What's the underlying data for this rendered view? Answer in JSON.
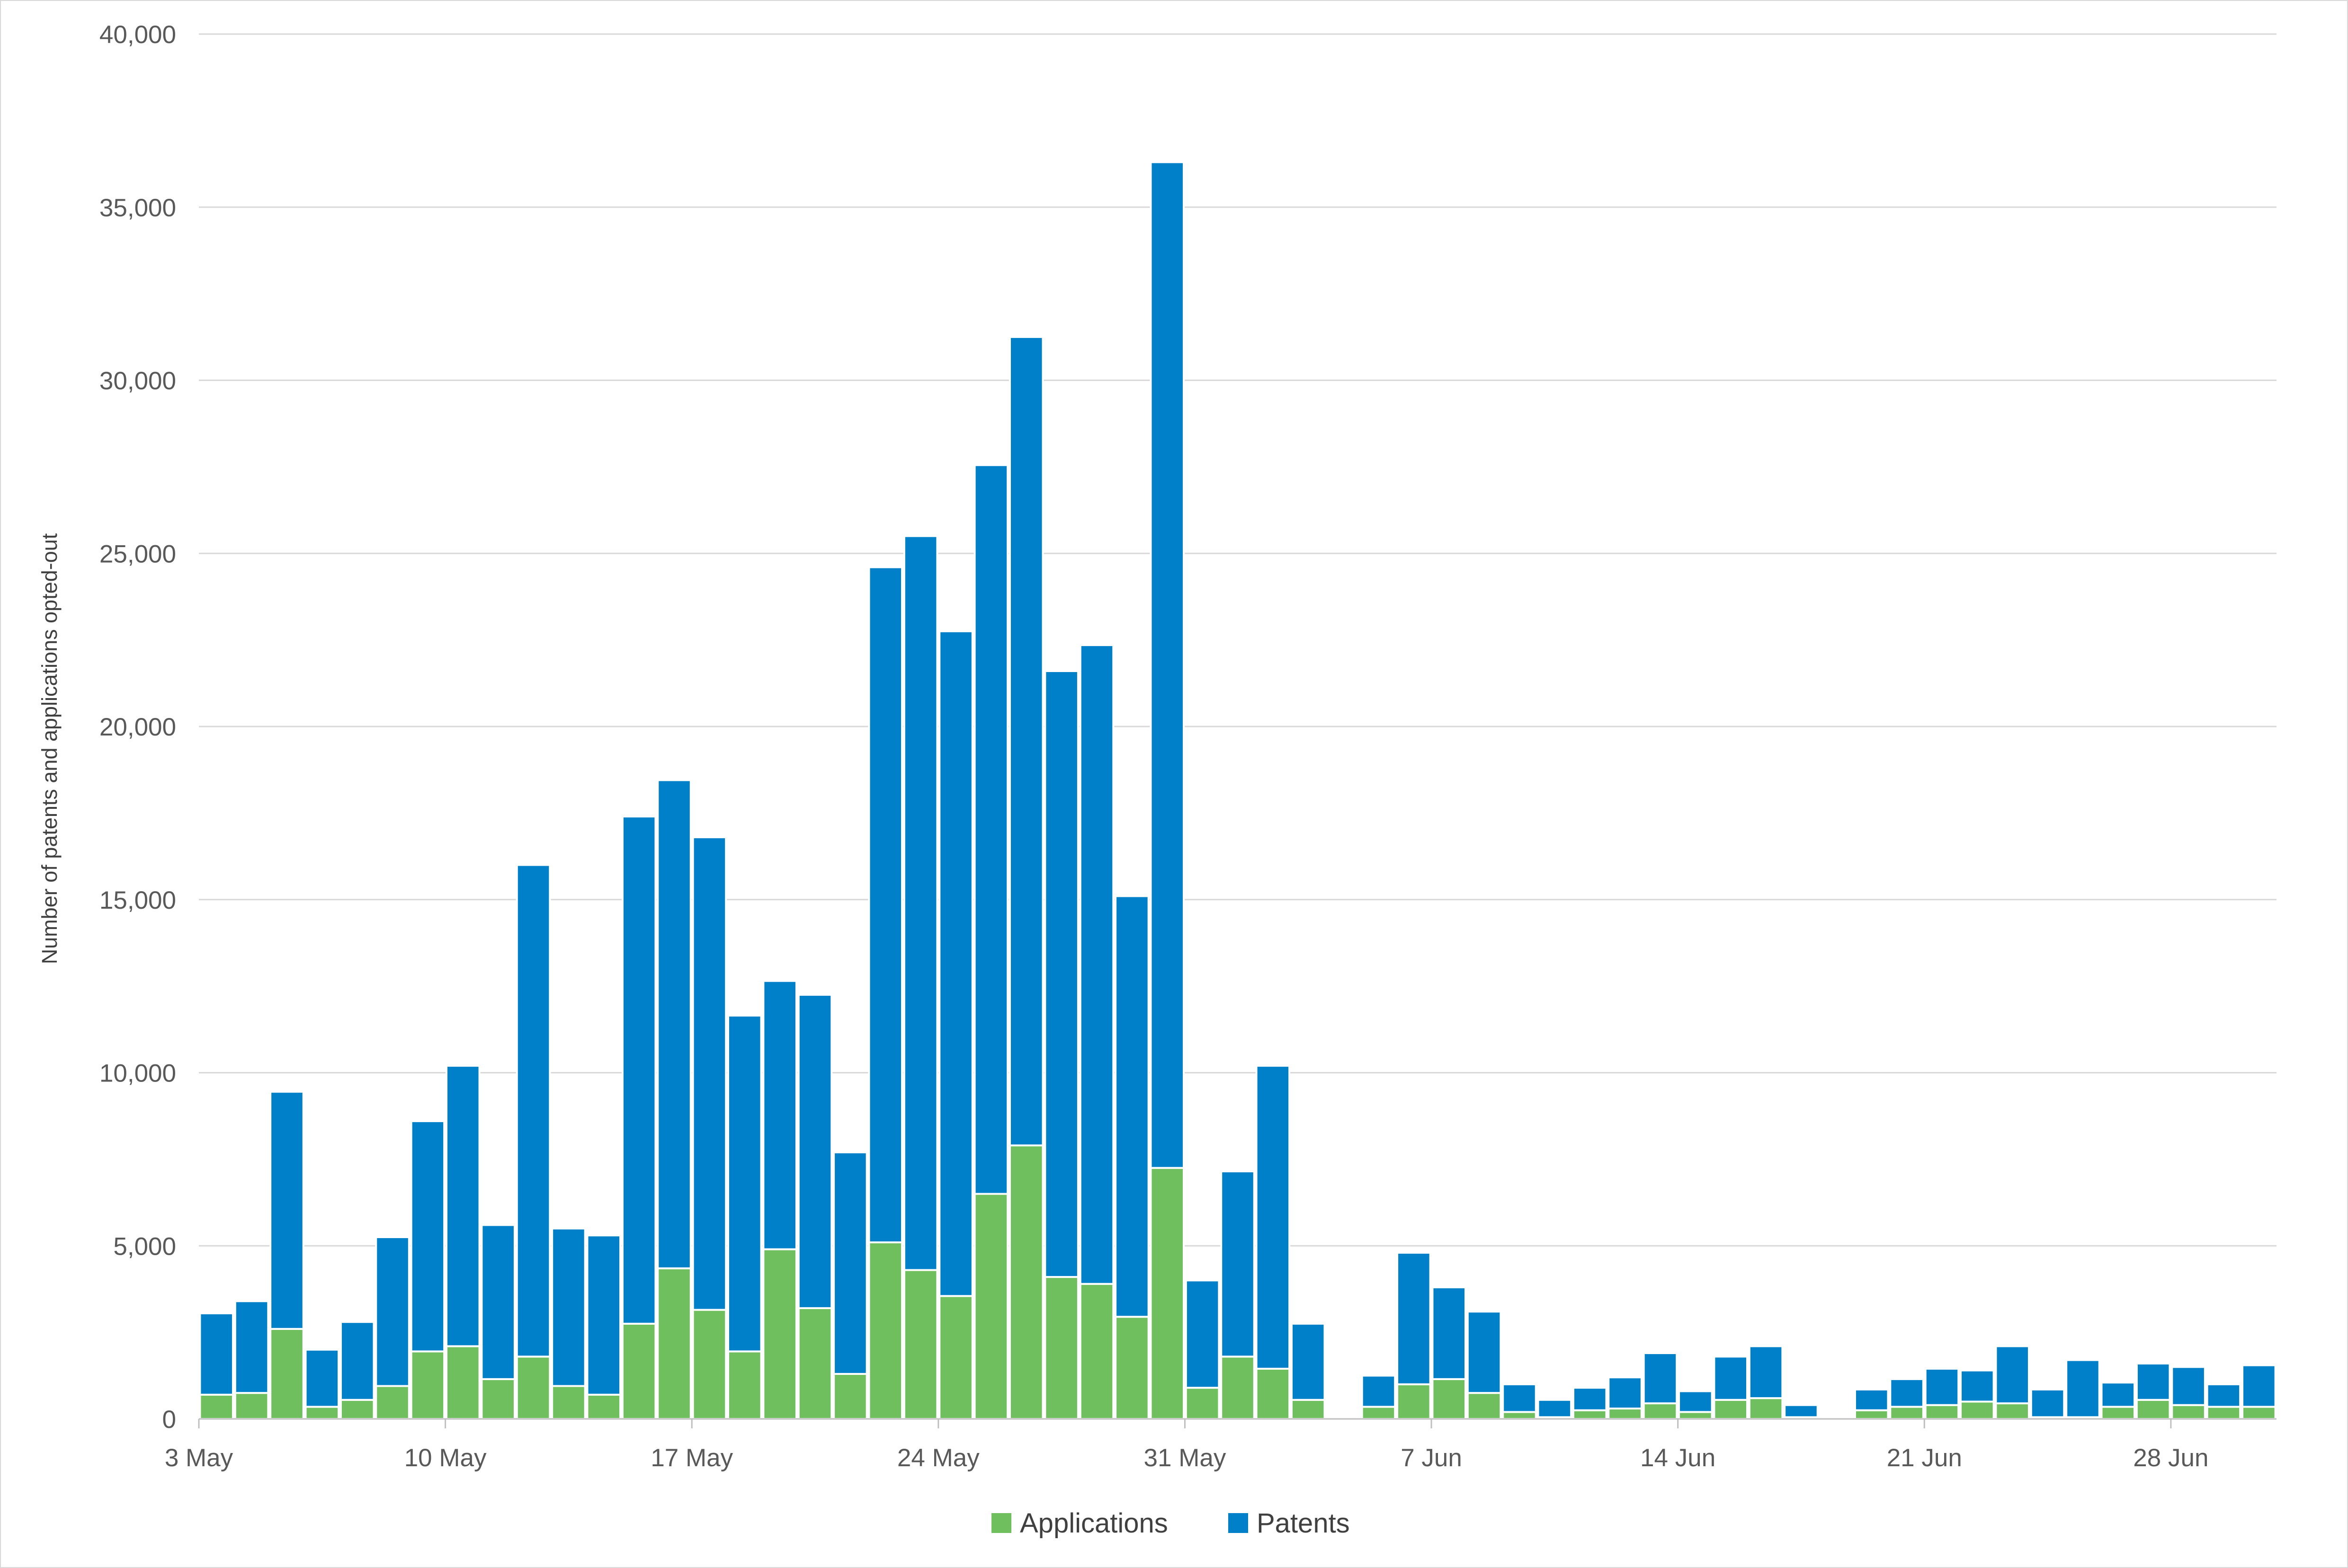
{
  "chart_data": {
    "type": "bar",
    "stacked": true,
    "title": "",
    "xlabel": "",
    "ylabel": "Number of patents and applications opted-out",
    "ylim": [
      0,
      40000
    ],
    "yticks": [
      0,
      5000,
      10000,
      15000,
      20000,
      25000,
      30000,
      35000,
      40000
    ],
    "ytick_labels": [
      "0",
      "5,000",
      "10,000",
      "15,000",
      "20,000",
      "25,000",
      "30,000",
      "35,000",
      "40,000"
    ],
    "grid": true,
    "legend_position": "bottom",
    "x_start": "3 May",
    "x_end": "30 Jun",
    "categories": [
      "3 May",
      "4 May",
      "5 May",
      "6 May",
      "7 May",
      "8 May",
      "9 May",
      "10 May",
      "11 May",
      "12 May",
      "13 May",
      "14 May",
      "15 May",
      "16 May",
      "17 May",
      "18 May",
      "19 May",
      "20 May",
      "21 May",
      "22 May",
      "23 May",
      "24 May",
      "25 May",
      "26 May",
      "27 May",
      "28 May",
      "29 May",
      "30 May",
      "31 May",
      "1 Jun",
      "2 Jun",
      "3 Jun",
      "4 Jun",
      "5 Jun",
      "6 Jun",
      "7 Jun",
      "8 Jun",
      "9 Jun",
      "10 Jun",
      "11 Jun",
      "12 Jun",
      "13 Jun",
      "14 Jun",
      "15 Jun",
      "16 Jun",
      "17 Jun",
      "18 Jun",
      "19 Jun",
      "20 Jun",
      "21 Jun",
      "22 Jun",
      "23 Jun",
      "24 Jun",
      "25 Jun",
      "26 Jun",
      "27 Jun",
      "28 Jun",
      "29 Jun",
      "30 Jun"
    ],
    "xtick_labels": [
      "3 May",
      "10 May",
      "17 May",
      "24 May",
      "31 May",
      "7 Jun",
      "14 Jun",
      "21 Jun",
      "28 Jun"
    ],
    "series": [
      {
        "name": "Applications",
        "color": "#70bf5e",
        "values": [
          700,
          750,
          2600,
          350,
          550,
          950,
          1950,
          2100,
          1150,
          1800,
          950,
          700,
          2750,
          4350,
          3150,
          1950,
          4900,
          3200,
          1300,
          5100,
          4300,
          3550,
          6500,
          7900,
          4100,
          3900,
          2950,
          7250,
          900,
          1800,
          1450,
          550,
          0,
          350,
          1000,
          1150,
          750,
          200,
          50,
          250,
          300,
          450,
          200,
          550,
          600,
          50,
          0,
          250,
          350,
          400,
          500,
          450,
          50,
          50,
          350,
          550,
          400,
          350,
          350
        ]
      },
      {
        "name": "Patents",
        "color": "#0080c8",
        "values": [
          2350,
          2650,
          6850,
          1650,
          2250,
          4300,
          6650,
          8100,
          4450,
          14200,
          4550,
          4600,
          14650,
          14100,
          13650,
          9700,
          7750,
          9050,
          6400,
          19500,
          21200,
          19200,
          21050,
          23350,
          17500,
          18450,
          12150,
          29050,
          3100,
          5350,
          8750,
          2200,
          50,
          900,
          3800,
          2650,
          2350,
          800,
          500,
          650,
          900,
          1450,
          600,
          1250,
          1500,
          350,
          0,
          600,
          800,
          1050,
          900,
          1650,
          800,
          1650,
          700,
          1050,
          1100,
          650,
          1200
        ]
      }
    ]
  }
}
